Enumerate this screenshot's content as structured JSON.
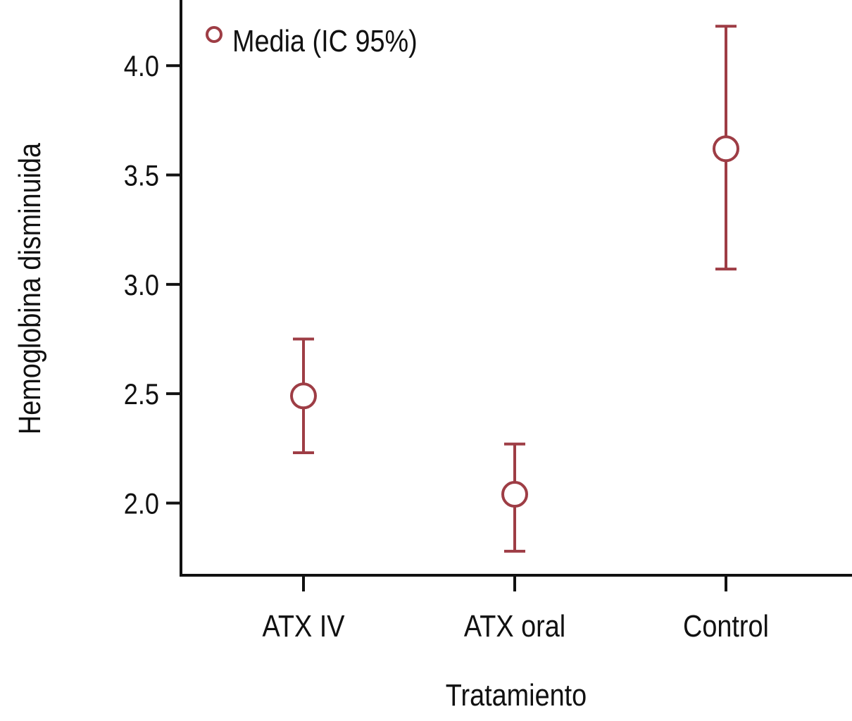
{
  "chart_data": {
    "type": "scatter",
    "subtype": "error-bar (mean with 95% CI)",
    "xlabel": "Tratamiento",
    "ylabel": "Hemoglobina disminuida",
    "categories": [
      "ATX IV",
      "ATX oral",
      "Control"
    ],
    "series": [
      {
        "name": "Media (IC 95%)",
        "mean": [
          2.49,
          2.04,
          3.62
        ],
        "ci_lower": [
          2.23,
          1.78,
          3.07
        ],
        "ci_upper": [
          2.75,
          2.27,
          4.18
        ]
      }
    ],
    "yticks": [
      "2.0",
      "2.5",
      "3.0",
      "3.5",
      "4.0"
    ],
    "ylim": [
      1.67,
      4.3
    ],
    "legend": {
      "label": "Media (IC 95%)",
      "placement": "top-left"
    },
    "grid": false,
    "color": "#9e3d45"
  }
}
